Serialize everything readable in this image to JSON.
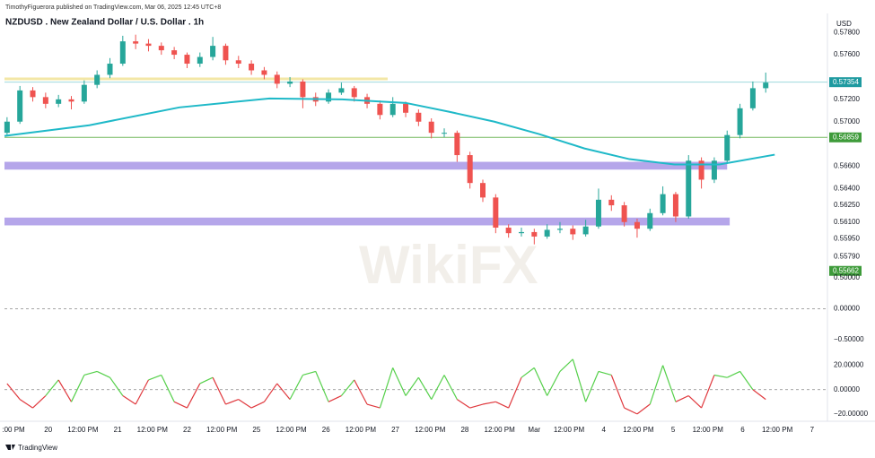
{
  "header": {
    "publisher": "TimothyFiguerora published on TradingView.com, Mar 06, 2025 12:45 UTC+8",
    "symbol": "NZDUSD . New Zealand Dollar / U.S. Dollar . 1h",
    "currency": "USD"
  },
  "watermark": "WikiFX",
  "footer": "TradingView",
  "chart_data": [
    {
      "type": "candlestick",
      "up_color": "#26a69a",
      "down_color": "#ef5350",
      "grid": false,
      "ylim": [
        0.5568,
        0.5793
      ],
      "yticks": [
        {
          "value": 0.578,
          "label": "0.57800"
        },
        {
          "value": 0.576,
          "label": "0.57600"
        },
        {
          "value": 0.572,
          "label": "0.57200"
        },
        {
          "value": 0.57,
          "label": "0.57000"
        },
        {
          "value": 0.566,
          "label": "0.56600"
        },
        {
          "value": 0.564,
          "label": "0.56400"
        },
        {
          "value": 0.5625,
          "label": "0.56250"
        },
        {
          "value": 0.561,
          "label": "0.56100"
        },
        {
          "value": 0.5595,
          "label": "0.55950"
        },
        {
          "value": 0.5579,
          "label": "0.55790"
        }
      ],
      "candles": [
        [
          0.569,
          0.5704,
          0.5687,
          0.57
        ],
        [
          0.57,
          0.5732,
          0.5698,
          0.5728
        ],
        [
          0.5728,
          0.5731,
          0.5718,
          0.5722
        ],
        [
          0.5722,
          0.5726,
          0.5712,
          0.5716
        ],
        [
          0.5716,
          0.5724,
          0.5713,
          0.572
        ],
        [
          0.572,
          0.5723,
          0.5711,
          0.5718
        ],
        [
          0.5718,
          0.5737,
          0.5716,
          0.5733
        ],
        [
          0.5733,
          0.5746,
          0.573,
          0.5742
        ],
        [
          0.5742,
          0.5757,
          0.5739,
          0.5752
        ],
        [
          0.5752,
          0.5777,
          0.575,
          0.5772
        ],
        [
          0.5772,
          0.5778,
          0.5765,
          0.577
        ],
        [
          0.577,
          0.5774,
          0.5763,
          0.5768
        ],
        [
          0.5768,
          0.5771,
          0.576,
          0.5764
        ],
        [
          0.5764,
          0.5767,
          0.5756,
          0.576
        ],
        [
          0.576,
          0.5762,
          0.5748,
          0.5752
        ],
        [
          0.5752,
          0.5762,
          0.5749,
          0.5758
        ],
        [
          0.5758,
          0.5776,
          0.5755,
          0.5768
        ],
        [
          0.5768,
          0.577,
          0.5751,
          0.5755
        ],
        [
          0.5755,
          0.5759,
          0.5748,
          0.5752
        ],
        [
          0.5752,
          0.5755,
          0.5742,
          0.5746
        ],
        [
          0.5746,
          0.5749,
          0.5738,
          0.5742
        ],
        [
          0.5742,
          0.5745,
          0.573,
          0.5734
        ],
        [
          0.5734,
          0.574,
          0.5731,
          0.5736
        ],
        [
          0.5736,
          0.5738,
          0.5712,
          0.5722
        ],
        [
          0.5722,
          0.5726,
          0.5714,
          0.5718
        ],
        [
          0.5718,
          0.5729,
          0.5716,
          0.5726
        ],
        [
          0.5726,
          0.5735,
          0.5724,
          0.573
        ],
        [
          0.573,
          0.5732,
          0.5718,
          0.5722
        ],
        [
          0.5722,
          0.5725,
          0.5712,
          0.5716
        ],
        [
          0.5716,
          0.5719,
          0.5702,
          0.5706
        ],
        [
          0.5706,
          0.5722,
          0.5704,
          0.5716
        ],
        [
          0.5716,
          0.5718,
          0.5704,
          0.5708
        ],
        [
          0.5708,
          0.5711,
          0.5696,
          0.57
        ],
        [
          0.57,
          0.5703,
          0.5685,
          0.569
        ],
        [
          0.569,
          0.5694,
          0.5686,
          0.569
        ],
        [
          0.569,
          0.5692,
          0.5664,
          0.567
        ],
        [
          0.567,
          0.5673,
          0.564,
          0.5645
        ],
        [
          0.5645,
          0.5648,
          0.5628,
          0.5632
        ],
        [
          0.5632,
          0.5635,
          0.56,
          0.5605
        ],
        [
          0.5605,
          0.5608,
          0.5596,
          0.56
        ],
        [
          0.56,
          0.5605,
          0.5597,
          0.5601
        ],
        [
          0.5601,
          0.5604,
          0.559,
          0.5597
        ],
        [
          0.5597,
          0.5608,
          0.5595,
          0.5603
        ],
        [
          0.5603,
          0.561,
          0.56,
          0.5604
        ],
        [
          0.5604,
          0.5607,
          0.5594,
          0.5599
        ],
        [
          0.5599,
          0.5612,
          0.5597,
          0.5606
        ],
        [
          0.5606,
          0.564,
          0.5604,
          0.563
        ],
        [
          0.563,
          0.5634,
          0.562,
          0.5625
        ],
        [
          0.5625,
          0.5628,
          0.5606,
          0.561
        ],
        [
          0.561,
          0.5613,
          0.5596,
          0.5604
        ],
        [
          0.5604,
          0.5622,
          0.5602,
          0.5618
        ],
        [
          0.5618,
          0.5642,
          0.5616,
          0.5635
        ],
        [
          0.5635,
          0.5637,
          0.561,
          0.5615
        ],
        [
          0.5615,
          0.567,
          0.5613,
          0.5665
        ],
        [
          0.5665,
          0.5668,
          0.564,
          0.5648
        ],
        [
          0.5648,
          0.5668,
          0.5645,
          0.5665
        ],
        [
          0.5665,
          0.5692,
          0.5662,
          0.5688
        ],
        [
          0.5688,
          0.5716,
          0.5685,
          0.5712
        ],
        [
          0.5712,
          0.5736,
          0.571,
          0.573
        ],
        [
          0.573,
          0.5744,
          0.5726,
          0.5735
        ]
      ],
      "ma": {
        "color": "#1fb9c8",
        "x": [
          -0.2,
          6.4,
          13.4,
          20.4,
          26,
          31,
          34.4,
          37.9,
          41.4,
          44.9,
          48.4,
          51.9,
          55.4,
          59.7
        ],
        "values": [
          0.56872,
          0.56968,
          0.57128,
          0.57208,
          0.572,
          0.57168,
          0.57088,
          0.57,
          0.56888,
          0.5676,
          0.56664,
          0.56616,
          0.56616,
          0.56704
        ]
      },
      "zones": [
        {
          "from": 0.5657,
          "to": 0.5664,
          "x_end": 56,
          "color": "#a897e6"
        },
        {
          "from": 0.5607,
          "to": 0.5614,
          "x_end": 56.2,
          "color": "#a897e6"
        }
      ],
      "hlines": [
        {
          "value": 0.57384,
          "x_end": 29.6,
          "color": "#f3e7a6"
        },
        {
          "value": 0.57354,
          "color": "#9ed9dd"
        },
        {
          "value": 0.56859,
          "color": "#74b85f"
        }
      ],
      "price_flags": [
        {
          "value": 0.57354,
          "color": "#1e9aa0"
        },
        {
          "value": 0.56859,
          "color": "#3e9b3a"
        },
        {
          "value": 0.55662,
          "color": "#3e9b3a"
        }
      ]
    },
    {
      "type": "indicator",
      "ylim": [
        -0.66,
        0.645
      ],
      "yticks": [
        {
          "value": 0.5,
          "label": "0.50000"
        },
        {
          "value": 0,
          "label": "0.00000"
        },
        {
          "value": -0.5,
          "label": "−0.50000"
        }
      ],
      "levels": [
        0
      ]
    },
    {
      "type": "oscillator",
      "up_color": "#55d04a",
      "down_color": "#e0393e",
      "ylim": [
        -26,
        33
      ],
      "yticks": [
        {
          "value": 20,
          "label": "20.00000"
        },
        {
          "value": 0,
          "label": "0.00000"
        },
        {
          "value": -20,
          "label": "−20.00000"
        }
      ],
      "levels": [
        0
      ],
      "values": [
        5,
        -8,
        -15,
        -5,
        8,
        -10,
        12,
        15,
        10,
        -5,
        -12,
        8,
        12,
        -10,
        -15,
        5,
        10,
        -12,
        -8,
        -15,
        -10,
        5,
        -8,
        12,
        15,
        -10,
        -5,
        8,
        -12,
        -15,
        18,
        -5,
        10,
        -8,
        12,
        -8,
        -15,
        -12,
        -10,
        -15,
        10,
        18,
        -5,
        15,
        25,
        -10,
        15,
        12,
        -15,
        -20,
        -12,
        20,
        -10,
        -5,
        -15,
        12,
        10,
        15,
        0,
        -8
      ],
      "xlim": [
        -0.2,
        63.8
      ],
      "xticks": [
        {
          "value": 0.5,
          "label": ":00 PM"
        },
        {
          "value": 3.2,
          "label": "20"
        },
        {
          "value": 5.9,
          "label": "12:00 PM"
        },
        {
          "value": 8.6,
          "label": "21"
        },
        {
          "value": 11.3,
          "label": "12:00 PM"
        },
        {
          "value": 14,
          "label": "22"
        },
        {
          "value": 16.7,
          "label": "12:00 PM"
        },
        {
          "value": 19.4,
          "label": "25"
        },
        {
          "value": 22.1,
          "label": "12:00 PM"
        },
        {
          "value": 24.8,
          "label": "26"
        },
        {
          "value": 27.5,
          "label": "12:00 PM"
        },
        {
          "value": 30.2,
          "label": "27"
        },
        {
          "value": 32.9,
          "label": "12:00 PM"
        },
        {
          "value": 35.6,
          "label": "28"
        },
        {
          "value": 38.3,
          "label": "12:00 PM"
        },
        {
          "value": 41,
          "label": "Mar"
        },
        {
          "value": 43.7,
          "label": "12:00 PM"
        },
        {
          "value": 46.4,
          "label": "4"
        },
        {
          "value": 49.1,
          "label": "12:00 PM"
        },
        {
          "value": 51.8,
          "label": "5"
        },
        {
          "value": 54.5,
          "label": "12:00 PM"
        },
        {
          "value": 57.2,
          "label": "6"
        },
        {
          "value": 59.9,
          "label": "12:00 PM"
        },
        {
          "value": 62.6,
          "label": "7"
        }
      ]
    }
  ]
}
